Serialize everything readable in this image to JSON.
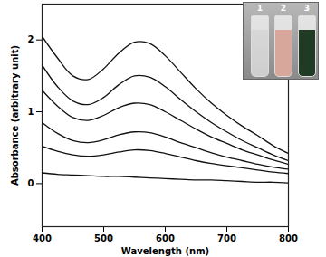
{
  "chart_data": {
    "type": "line",
    "x_label": "Wavelength (nm)",
    "y_label": "Absorbance (arbitrary unit)",
    "x": [
      400,
      425,
      450,
      475,
      500,
      525,
      550,
      575,
      600,
      625,
      650,
      675,
      700,
      725,
      750,
      775,
      800
    ],
    "series": [
      {
        "color": "#111111",
        "values": [
          2.05,
          1.75,
          1.5,
          1.45,
          1.6,
          1.82,
          1.97,
          1.95,
          1.78,
          1.55,
          1.32,
          1.12,
          0.95,
          0.8,
          0.67,
          0.53,
          0.42
        ]
      },
      {
        "color": "#111111",
        "values": [
          1.65,
          1.35,
          1.15,
          1.1,
          1.2,
          1.38,
          1.5,
          1.48,
          1.35,
          1.17,
          1.0,
          0.85,
          0.72,
          0.6,
          0.5,
          0.4,
          0.32
        ]
      },
      {
        "color": "#111111",
        "values": [
          1.3,
          1.08,
          0.92,
          0.88,
          0.95,
          1.06,
          1.12,
          1.1,
          1.0,
          0.88,
          0.76,
          0.65,
          0.56,
          0.47,
          0.4,
          0.33,
          0.27
        ]
      },
      {
        "color": "#111111",
        "values": [
          0.85,
          0.7,
          0.6,
          0.57,
          0.61,
          0.68,
          0.72,
          0.71,
          0.65,
          0.57,
          0.5,
          0.43,
          0.37,
          0.32,
          0.27,
          0.23,
          0.2
        ]
      },
      {
        "color": "#111111",
        "values": [
          0.52,
          0.45,
          0.4,
          0.38,
          0.4,
          0.44,
          0.47,
          0.46,
          0.42,
          0.37,
          0.32,
          0.28,
          0.25,
          0.22,
          0.19,
          0.16,
          0.14
        ]
      },
      {
        "color": "#111111",
        "values": [
          0.15,
          0.13,
          0.12,
          0.11,
          0.1,
          0.1,
          0.09,
          0.08,
          0.07,
          0.06,
          0.05,
          0.05,
          0.04,
          0.03,
          0.02,
          0.02,
          0.01
        ]
      }
    ],
    "xlim": [
      400,
      800
    ],
    "xticks": [
      400,
      500,
      600,
      700,
      800
    ],
    "ylim": [
      -0.6,
      2.5
    ],
    "yticks": [
      0,
      1,
      2
    ],
    "inset_labels": [
      "1",
      "2",
      "3"
    ]
  }
}
